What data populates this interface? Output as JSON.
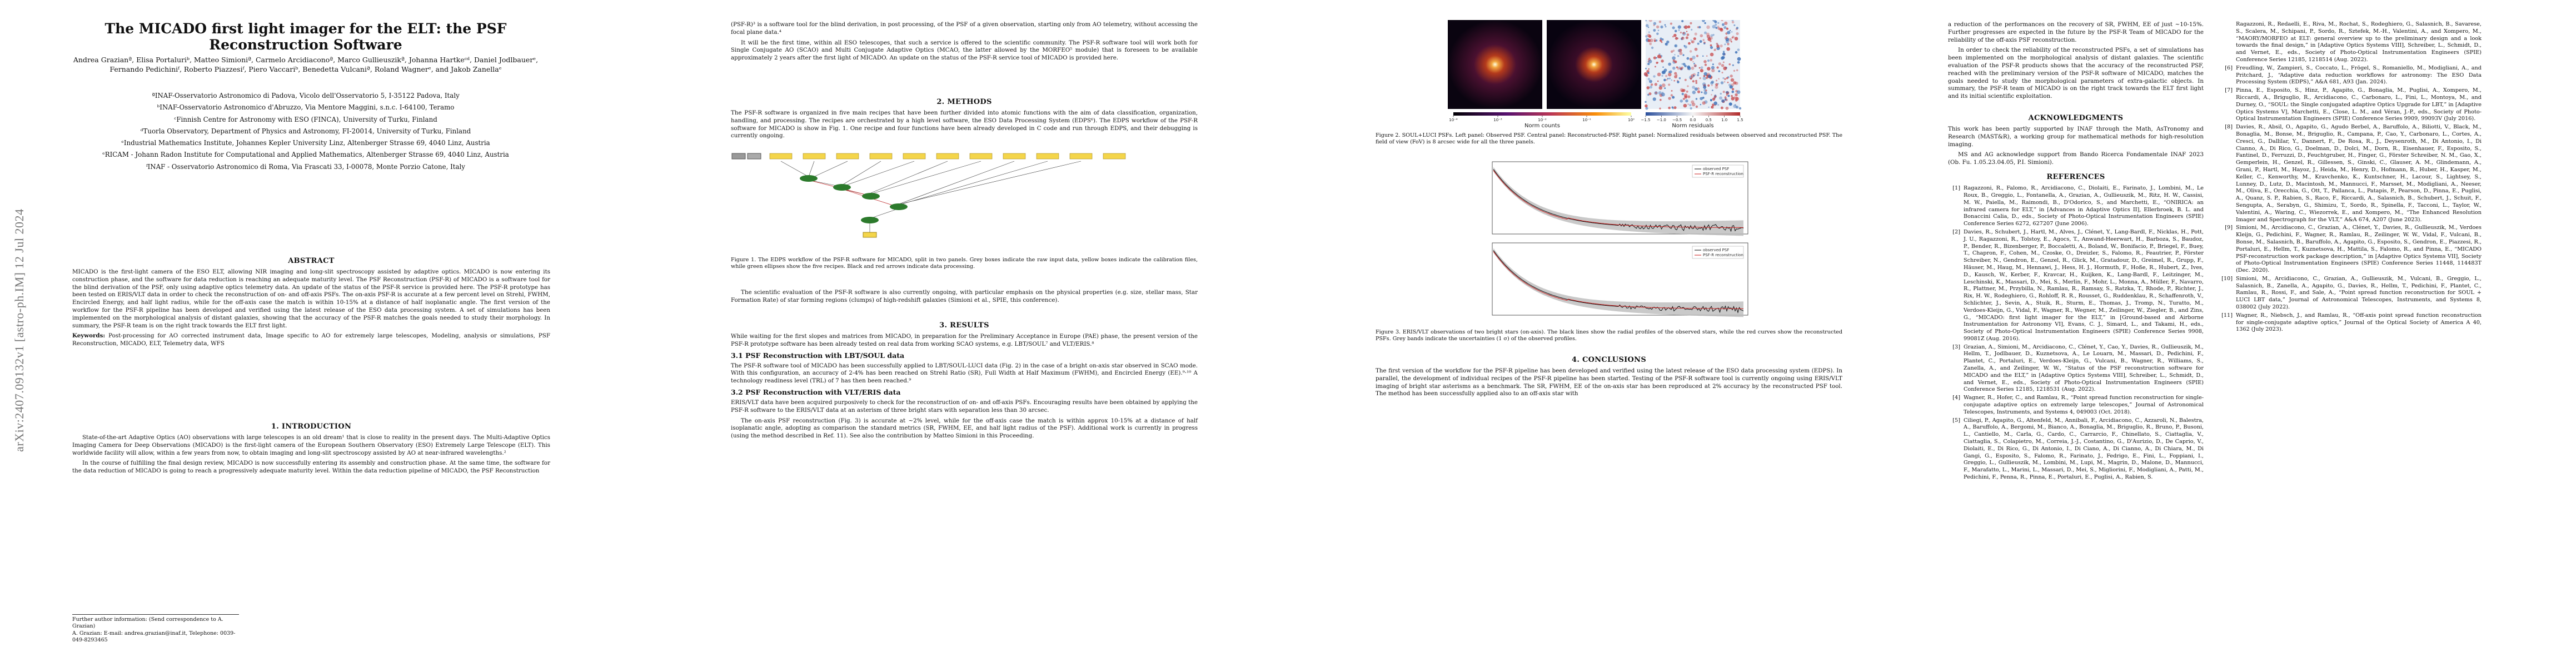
{
  "arxiv_id": "arXiv:2407.09132v1  [astro-ph.IM]  12 Jul 2024",
  "title": "The MICADO first light imager for the ELT: the PSF Reconstruction Software",
  "authors": "Andrea Grazianª, Elisa Portaluriᵇ, Matteo Simioniª, Carmelo Arcidiaconoª, Marco Gullieuszikª, Johanna Hartkeᶜᵈ, Daniel Jodlbauerᵉ, Fernando Pedichiniᶠ, Roberto Piazzesiᶠ, Piero Vaccariᵇ, Benedetta Vulcaniª, Roland Wagnerᵉ, and Jakob Zanellaᵉ",
  "affiliations": [
    "ªINAF-Osservatorio Astronomico di Padova, Vicolo dell'Osservatorio 5, I-35122 Padova, Italy",
    "ᵇINAF-Osservatorio Astronomico d'Abruzzo, Via Mentore Maggini, s.n.c. I-64100, Teramo",
    "ᶜFinnish Centre for Astronomy with ESO (FINCA), University of Turku, Finland",
    "ᵈTuorla Observatory, Department of Physics and Astronomy, FI-20014, University of Turku, Finland",
    "ᵉIndustrial Mathematics Institute, Johannes Kepler University Linz, Altenberger Strasse 69, 4040 Linz, Austria",
    "ᵉRICAM - Johann Radon Institute for Computational and Applied Mathematics, Altenberger Strasse 69, 4040 Linz, Austria",
    "ᶠINAF - Osservatorio Astronomico di Roma, Via Frascati 33, I-00078, Monte Porzio Catone, Italy"
  ],
  "abstract": {
    "heading": "ABSTRACT",
    "text": "MICADO is the first-light camera of the ESO ELT, allowing NIR imaging and long-slit spectroscopy assisted by adaptive optics. MICADO is now entering its construction phase, and the software for data reduction is reaching an adequate maturity level. The PSF Reconstruction (PSF-R) of MICADO is a software tool for the blind derivation of the PSF, only using adaptive optics telemetry data. An update of the status of the PSF-R service is provided here. The PSF-R prototype has been tested on ERIS/VLT data in order to check the reconstruction of on- and off-axis PSFs. The on-axis PSF-R is accurate at a few percent level on Strehl, FWHM, Encircled Energy, and half light radius, while for the off-axis case the match is within 10-15% at a distance of half isoplanatic angle. The first version of the workflow for the PSF-R pipeline has been developed and verified using the latest release of the ESO data processing system. A set of simulations has been implemented on the morphological analysis of distant galaxies, showing that the accuracy of the PSF-R matches the goals needed to study their morphology. In summary, the PSF-R team is on the right track towards the ELT first light.",
    "keywords_label": "Keywords:",
    "keywords": "Post-processing for AO corrected instrument data, Image specific to AO for extremely large telescopes, Modeling, analysis or simulations, PSF Reconstruction, MICADO, ELT, Telemetry data, WFS"
  },
  "intro": {
    "heading": "1. INTRODUCTION",
    "p1": "State-of-the-art Adaptive Optics (AO) observations with large telescopes is an old dream¹ that is close to reality in the present days. The Multi-Adaptive Optics Imaging Camera for Deep Observations (MICADO) is the first-light camera of the European Southern Observatory (ESO) Extremely Large Telescope (ELT). This worldwide facility will allow, within a few years from now, to obtain imaging and long-slit spectroscopy assisted by AO at near-infrared wavelengths.²",
    "p2": "In the course of fulfilling the final design review, MICADO is now successfully entering its assembly and construction phase. At the same time, the software for the data reduction of MICADO is going to reach a progressively adequate maturity level. Within the data reduction pipeline of MICADO, the PSF Reconstruction"
  },
  "footnote": {
    "l1": "Further author information: (Send correspondence to A. Grazian)",
    "l2": "A. Grazian: E-mail: andrea.grazian@inaf.it, Telephone: 0039-049-8293465"
  },
  "col2_top": {
    "p1": "(PSF-R)³ is a software tool for the blind derivation, in post processing, of the PSF of a given observation, starting only from AO telemetry, without accessing the focal plane data.⁴",
    "p2": "It will be the first time, within all ESO telescopes, that such a service is offered to the scientific community. The PSF-R software tool will work both for Single Conjugate AO (SCAO) and Multi Conjugate Adaptive Optics (MCAO, the latter allowed by the MORFEO⁵ module) that is foreseen to be available approximately 2 years after the first light of MICADO. An update on the status of the PSF-R service tool of MICADO is provided here."
  },
  "methods": {
    "heading": "2. METHODS",
    "p1": "The PSF-R software is organized in five main recipes that have been further divided into atomic functions with the aim of data classification, organization, handling, and processing. The recipes are orchestrated by a high level software, the ESO Data Processing System (EDPS⁶). The EDPS workflow of the PSF-R software for MICADO is show in Fig. 1. One recipe and four functions have been already developed in C code and run through EDPS, and their debugging is currently ongoing.",
    "fig1_caption": "Figure 1. The EDPS workflow of the PSF-R software for MICADO, split in two panels. Grey boxes indicate the raw input data, yellow boxes indicate the calibration files, while green ellipses show the five recipes. Black and red arrows indicate data processing.",
    "p2": "The scientific evaluation of the PSF-R software is also currently ongoing, with particular emphasis on the physical properties (e.g. size, stellar mass, Star Formation Rate) of star forming regions (clumps) of high-redshift galaxies (Simioni et al., SPIE, this conference)."
  },
  "results": {
    "heading": "3. RESULTS",
    "p1": "While waiting for the first slopes and matrices from MICADO, in preparation for the Preliminary Acceptance in Europe (PAE) phase, the present version of the PSF-R prototype software has been already tested on real data from working SCAO systems, e.g. LBT/SOUL⁷ and VLT/ERIS.⁸",
    "s31": "3.1 PSF Reconstruction with LBT/SOUL data",
    "p31": "The PSF-R software tool of MICADO has been successfully applied to LBT/SOUL-LUCI data (Fig. 2) in the case of a bright on-axis star observed in SCAO mode. With this configuration, an accuracy of 2-4% has been reached on Strehl Ratio (SR), Full Width at Half Maximum (FWHM), and Encircled Energy (EE).⁹·¹⁰ A technology readiness level (TRL) of 7 has then been reached.⁹",
    "s32": "3.2 PSF Reconstruction with VLT/ERIS data",
    "p32a": "ERIS/VLT data have been acquired purposively to check for the reconstruction of on- and off-axis PSFs. Encouraging results have been obtained by applying the PSF-R software to the ERIS/VLT data at an asterism of three bright stars with separation less than 30 arcsec.",
    "p32b": "The on-axis PSF reconstruction (Fig. 3) is accurate at ~2% level, while for the off-axis case the match is within approx 10-15% at a distance of half isoplanatic angle, adopting as comparison the standard metrics (SR, FWHM, EE, and half light radius of the PSF). Additional work is currently in progress (using the method described in Ref. 11). See also the contribution by Matteo Simioni in this Proceeding."
  },
  "fig2": {
    "caption": "Figure 2. SOUL+LUCI PSFs. Left panel: Observed PSF. Central panel: Reconstructed-PSF. Right panel: Normalized residuals between observed and reconstructed PSF. The field of view (FoV) is 8 arcsec wide for all the three panels.",
    "cbar1_label": "Norm counts",
    "cbar2_label": "Norm residuals",
    "cbar1_ticks": [
      "10⁻⁴",
      "10⁻³",
      "10⁻²",
      "10⁻¹",
      "10⁰"
    ],
    "cbar2_ticks": [
      "−1.5",
      "−1.0",
      "−0.5",
      "0.0",
      "0.5",
      "1.0",
      "1.5"
    ]
  },
  "fig3": {
    "caption": "Figure 3. ERIS/VLT observations of two bright stars (on-axis). The black lines show the radial profiles of the observed stars, while the red curves show the reconstructed PSFs. Grey bands indicate the uncertainties (1 σ) of the observed profiles.",
    "legend_obs": "observed PSF",
    "legend_rec": "PSF-R reconstruction"
  },
  "conclusions": {
    "heading": "4. CONCLUSIONS",
    "p1": "The first version of the workflow for the PSF-R pipeline has been developed and verified using the latest release of the ESO data processing system (EDPS). In parallel, the development of individual recipes of the PSF-R pipeline has been started. Testing of the PSF-R software tool is currently ongoing using ERIS/VLT imaging of bright star asterisms as a benchmark. The SR, FWHM, EE of the on-axis star has been reproduced at 2% accuracy by the reconstructed PSF tool. The method has been successfully applied also to an off-axis star with",
    "p2": "a reduction of the performances on the recovery of SR, FWHM, EE of just ~10-15%. Further progresses are expected in the future by the PSF-R Team of MICADO for the reliability of the off-axis PSF reconstruction.",
    "p3": "In order to check the reliability of the reconstructed PSFs, a set of simulations has been implemented on the morphological analysis of distant galaxies. The scientific evaluation of the PSF-R products shows that the accuracy of the reconstructed PSF, reached with the preliminary version of the PSF-R software of MICADO, matches the goals needed to study the morphological parameters of extra-galactic objects. In summary, the PSF-R team of MICADO is on the right track towards the ELT first light and its initial scientific exploitation."
  },
  "acknowledgments": {
    "heading": "ACKNOWLEDGMENTS",
    "p1": "This work has been partly supported by INAF through the Math, AsTronomy and Research (MAST&R), a working group for mathematical methods for high-resolution imaging.",
    "p2": "MS and AG acknowledge support from Bando Ricerca Fondamentale INAF 2023 (Ob. Fu. 1.05.23.04.05, P.I. Simioni)."
  },
  "references": {
    "heading": "REFERENCES",
    "items": [
      {
        "n": "[1]",
        "text": "Ragazzoni, R., Falomo, R., Arcidiacono, C., Diolaiti, E., Farinato, J., Lombini, M., Le Roux, B., Greggio, L., Fontanella, A., Grazian, A., Gullieuszik, M., Ritz, H. W., Cassisi, M. W., Paiella, M., Raimondi, B., D'Odorico, S., and Marchetti, E., “ONIRICA: an infrared camera for ELT,” in [Advances in Adaptive Optics II], Ellerbroek, B. L. and Bonaccini Calia, D., eds., Society of Photo-Optical Instrumentation Engineers (SPIE) Conference Series 6272, 627207 (June 2006)."
      },
      {
        "n": "[2]",
        "text": "Davies, R., Schubert, J., Hartl, M., Alves, J., Clénet, Y., Lang-Bardl, F., Nicklas, H., Pott, J. U., Ragazzoni, R., Tolstoy, E., Agocs, T., Anwand-Heerwart, H., Barboza, S., Baudoz, P., Bender, R., Bizenberger, P., Boccaletti, A., Boland, W., Bonifacio, P., Briegel, F., Buey, T., Chapron, F., Cohen, M., Czoske, O., Dreizler, S., Falomo, R., Feautrier, P., Förster Schreiber, N., Gendron, E., Genzel, R., Glick, M., Gratadour, D., Greimel, R., Grupp, F., Häuser, M., Haug, M., Hennawi, J., Hess, H. J., Hormuth, F., Hoße, R., Hubert, Z., Ives, D., Kausch, W., Kerber, F., Kravcar, H., Kuijken, K., Lang-Bardl, F., Leitzinger, M., Leschinski, K., Massari, D., Mei, S., Merlin, F., Mohr, L., Monna, A., Müller, F., Navarro, R., Plattner, M., Przybilla, N., Ramlau, R., Ramsay, S., Ratzka, T., Rhode, P., Richter, J., Rix, H. W., Rodeghiero, G., Rohloff, R. R., Rousset, G., Ruddenklau, R., Schaffenroth, V., Schlichter, J., Sevin, A., Stuik, R., Sturm, E., Thomas, J., Tromp, N., Turatto, M., Verdoes-Kleijn, G., Vidal, F., Wagner, R., Wegner, M., Zeilinger, W., Ziegler, B., and Zins, G., “MICADO: first light imager for the ELT,” in [Ground-based and Airborne Instrumentation for Astronomy VI], Evans, C. J., Simard, L., and Takami, H., eds., Society of Photo-Optical Instrumentation Engineers (SPIE) Conference Series 9908, 99081Z (Aug. 2016)."
      },
      {
        "n": "[3]",
        "text": "Grazian, A., Simioni, M., Arcidiacono, C., Clénet, Y., Cao, Y., Davies, R., Gullieuszik, M., Hellm, T., Jodlbauer, D., Kuznetsova, A., Le Louarn, M., Massari, D., Pedichini, F., Plantet, C., Portaluri, E., Verdoes-Kleijn, G., Vulcani, B., Wagner, R., Williams, S., Zanella, A., and Zeilinger, W. W., “Status of the PSF reconstruction software for MICADO and the ELT,” in [Adaptive Optics Systems VIII], Schreiber, L., Schmidt, D., and Vernet, E., eds., Society of Photo-Optical Instrumentation Engineers (SPIE) Conference Series 12185, 1218531 (Aug. 2022)."
      },
      {
        "n": "[4]",
        "text": "Wagner, R., Hofer, C., and Ramlau, R., “Point spread function reconstruction for single-conjugate adaptive optics on extremely large telescopes,” Journal of Astronomical Telescopes, Instruments, and Systems 4, 049003 (Oct. 2018)."
      },
      {
        "n": "[5]",
        "text": "Ciliegi, P., Agapito, G., Altenfeld, M., Annibali, F., Arcidiacono, C., Azzaroli, N., Balestra, A., Baruffolo, A., Bergomi, M., Bianco, A., Bonaglia, M., Briguglio, R., Bruno, P., Busoni, L., Cantiello, M., Carla, G., Cardo, C., Carrarcio, F., Chinellato, S., Ciattaglia, V., Ciattaglia, S., Colapietro, M., Correia, J.-J., Costantino, G., D'Aurizio, D., De Caprio, V., Diolaiti, E., Di Rico, G., Di Antonio, I., Di Ciano, A., Di Cianno, A., Di Chiara, M., Di Gangi, G., Esposito, S., Falomo, R., Farinato, J., Fedrigo, E., Fini, L., Foppiani, I., Greggio, L., Gullieuszik, M., Lombini, M., Lupi, M., Magrin, D., Malone, D., Mannucci, F., Marafatto, L., Marini, L., Massari, D., Mei, S., Migliorini, F., Modigliani, A., Patti, M., Pedichini, F., Penna, R., Pinna, E., Portaluri, E., Puglisi, A., Rabien, S."
      },
      {
        "n": "",
        "text": "Ragazzoni, R., Redaelli, E., Riva, M., Rochat, S., Rodeghiero, G., Salasnich, B., Savarese, S., Scalera, M., Schipani, P., Sordo, R., Sztefek, M.-H., Valentini, A., and Xompero, M., “MAORY/MORFEO at ELT: general overview up to the preliminary design and a look towards the final design,” in [Adaptive Optics Systems VIII], Schreiber, L., Schmidt, D., and Vernet, E., eds., Society of Photo-Optical Instrumentation Engineers (SPIE) Conference Series 12185, 1218514 (Aug. 2022)."
      },
      {
        "n": "[6]",
        "text": "Freudling, W., Zampieri, S., Coccato, L., Frögel, S., Romaniello, M., Modigliani, A., and Pritchard, J., “Adaptive data reduction workflows for astronomy: The ESO Data Processing System (EDPS),” A&A 681, A93 (Jan. 2024)."
      },
      {
        "n": "[7]",
        "text": "Pinna, E., Esposito, S., Hinz, P., Agapito, G., Bonaglia, M., Puglisi, A., Xompero, M., Riccardi, A., Briguglio, R., Arcidiacono, C., Carbonaro, L., Fini, L., Montoya, M., and Durney, O., “SOUL: the Single conjugated adaptive Optics Upgrade for LBT,” in [Adaptive Optics Systems V], Marchetti, E., Close, L. M., and Véran, J.-P., eds., Society of Photo-Optical Instrumentation Engineers (SPIE) Conference Series 9909, 99093V (July 2016)."
      },
      {
        "n": "[8]",
        "text": "Davies, R., Absil, O., Agapito, G., Agudo Berbel, A., Baruffolo, A., Biliotti, V., Black, M., Bonaglia, M., Bonse, M., Briguglio, R., Campana, P., Cao, Y., Carbonaro, L., Cortes, A., Cresci, G., Dallilar, Y., Dannert, F., De Rosa, R., J., Deysenroth, M., Di Antonio, I., Di Cianno, A., Di Rico, G., Doelman, D., Dolci, M., Dorn, R., Eisenhauer, F., Esposito, S., Fantinel, D., Ferruzzi, D., Feuchtgruber, H., Finger, G., Förster Schreiber, N. M., Gao, X., Gemperlein, H., Genzel, R., Gillessen, S., Ginski, C., Glauser, A. M., Glindemann, A., Grani, P., Hartl, M., Hayoz, J., Heida, M., Henry, D., Hofmann, R., Huber, H., Kasper, M., Keller, C., Kenworthy, M., Kravchenko, K., Kuntschner, H., Lacour, S., Lightsey, S., Lunney, D., Lutz, D., Macintosh, M., Mannucci, F., Marsset, M., Modigliani, A., Neeser, M., Oliva, E., Orecchia, G., Ott, T., Pallanca, L., Patapis, P., Pearson, D., Pinna, E., Puglisi, A., Quanz, S. P., Rabien, S., Raco, F., Riccardi, A., Salasnich, B., Schubert, J., Schuit, F., Sengupta, A., Serabyn, G., Shimizu, T., Sordo, R., Spinella, F., Tacconi, L., Taylor, W., Valentini, A., Waring, C., Wiezorrek, E., and Xompero, M., “The Enhanced Resolution Imager and Spectrograph for the VLT,” A&A 674, A207 (June 2023)."
      },
      {
        "n": "[9]",
        "text": "Simioni, M., Arcidiacono, C., Grazian, A., Clénet, Y., Davies, R., Gullieuszik, M., Verdoes Kleijn, G., Pedichini, F., Wagner, R., Ramlau, R., Zeilinger, W. W., Vidal, F., Vulcani, B., Bonse, M., Salasnich, B., Baruffolo, A., Agapito, G., Esposito, S., Gendron, E., Piazzesi, R., Portaluri, E., Hellm, T., Kuznetsova, H., Mattila, S., Falomo, R., and Pinna, E., “MICADO PSF-reconstruction work package description,” in [Adaptive Optics Systems VII], Society of Photo-Optical Instrumentation Engineers (SPIE) Conference Series 11448, 114483T (Dec. 2020)."
      },
      {
        "n": "[10]",
        "text": "Simioni, M., Arcidiacono, C., Grazian, A., Gullieuszik, M., Vulcani, B., Greggio, L., Salasnich, B., Zanella, A., Agapito, G., Davies, R., Hellm, T., Pedichini, F., Plantet, C., Ramlau, R., Rossi, F., and Sale, A., “Point spread function reconstruction for SOUL + LUCI LBT data,” Journal of Astronomical Telescopes, Instruments, and Systems 8, 038002 (July 2022)."
      },
      {
        "n": "[11]",
        "text": "Wagner, R., Niebsch, J., and Ramlau, R., “Off-axis point spread function reconstruction for single-conjugate adaptive optics,” Journal of the Optical Society of America A 40, 1362 (July 2023)."
      }
    ]
  },
  "colors": {
    "cmap_hot": "#f2a640",
    "residual_blue": "#3b6fb6",
    "residual_red": "#c7484a",
    "workflow_yellow": "#f4d54a",
    "workflow_green": "#2c7a2c"
  }
}
